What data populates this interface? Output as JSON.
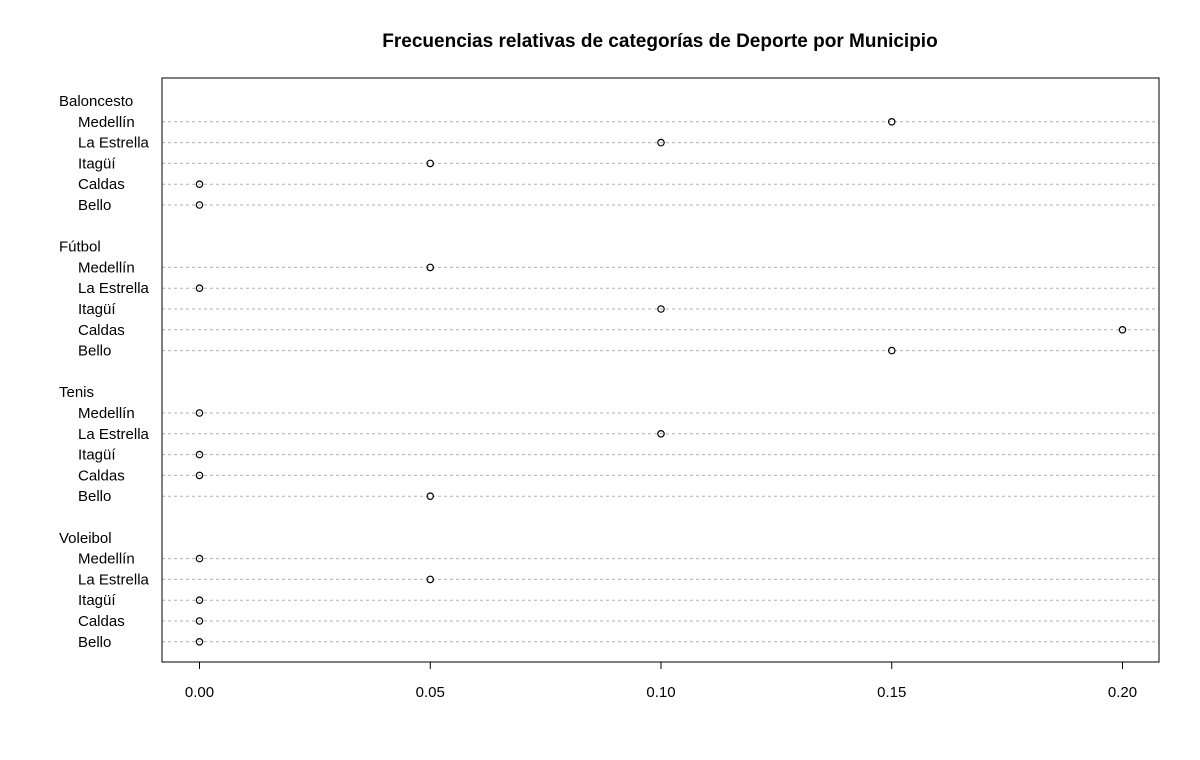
{
  "chart_data": {
    "type": "dotchart",
    "title": "Frecuencias relativas de categorías de Deporte por Municipio",
    "xlim": [
      0,
      0.2
    ],
    "xticks": [
      0.0,
      0.05,
      0.1,
      0.15,
      0.2
    ],
    "xtick_labels": [
      "0.00",
      "0.05",
      "0.10",
      "0.15",
      "0.20"
    ],
    "groups": [
      {
        "name": "Baloncesto",
        "items": [
          {
            "label": "Medellín",
            "value": 0.15
          },
          {
            "label": "La Estrella",
            "value": 0.1
          },
          {
            "label": "Itagüí",
            "value": 0.05
          },
          {
            "label": "Caldas",
            "value": 0.0
          },
          {
            "label": "Bello",
            "value": 0.0
          }
        ]
      },
      {
        "name": "Fútbol",
        "items": [
          {
            "label": "Medellín",
            "value": 0.05
          },
          {
            "label": "La Estrella",
            "value": 0.0
          },
          {
            "label": "Itagüí",
            "value": 0.1
          },
          {
            "label": "Caldas",
            "value": 0.2
          },
          {
            "label": "Bello",
            "value": 0.15
          }
        ]
      },
      {
        "name": "Tenis",
        "items": [
          {
            "label": "Medellín",
            "value": 0.0
          },
          {
            "label": "La Estrella",
            "value": 0.1
          },
          {
            "label": "Itagüí",
            "value": 0.0
          },
          {
            "label": "Caldas",
            "value": 0.0
          },
          {
            "label": "Bello",
            "value": 0.05
          }
        ]
      },
      {
        "name": "Voleibol",
        "items": [
          {
            "label": "Medellín",
            "value": 0.0
          },
          {
            "label": "La Estrella",
            "value": 0.05
          },
          {
            "label": "Itagüí",
            "value": 0.0
          },
          {
            "label": "Caldas",
            "value": 0.0
          },
          {
            "label": "Bello",
            "value": 0.0
          }
        ]
      }
    ]
  }
}
